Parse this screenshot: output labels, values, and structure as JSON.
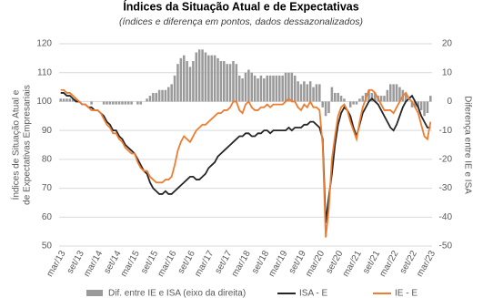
{
  "chart_data": {
    "type": "combo",
    "title": "Índices da Situação Atual e de Expectativas",
    "subtitle": "(índices e diferença em pontos, dados dessazonalizados)",
    "y_label": [
      "Índices de Situação Atual e",
      "de Expectativas Empresariais"
    ],
    "y2_label": "Diferença entre IE e ISA",
    "categories": [
      "mar/13",
      null,
      null,
      null,
      null,
      null,
      "set/13",
      null,
      null,
      null,
      null,
      null,
      "mar/14",
      null,
      null,
      null,
      null,
      null,
      "set/14",
      null,
      null,
      null,
      null,
      null,
      "mar/15",
      null,
      null,
      null,
      null,
      null,
      "set/15",
      null,
      null,
      null,
      null,
      null,
      "mar/16",
      null,
      null,
      null,
      null,
      null,
      "set/16",
      null,
      null,
      null,
      null,
      null,
      "mar/17",
      null,
      null,
      null,
      null,
      null,
      "set/17",
      null,
      null,
      null,
      null,
      null,
      "mar/18",
      null,
      null,
      null,
      null,
      null,
      "set/18",
      null,
      null,
      null,
      null,
      null,
      "mar/19",
      null,
      null,
      null,
      null,
      null,
      "set/19",
      null,
      null,
      null,
      null,
      null,
      "mar/20",
      null,
      null,
      null,
      null,
      null,
      "set/20",
      null,
      null,
      null,
      null,
      null,
      "mar/21",
      null,
      null,
      null,
      null,
      null,
      "set/21",
      null,
      null,
      null,
      null,
      null,
      "mar/22",
      null,
      null,
      null,
      null,
      null,
      "set/22",
      null,
      null,
      null,
      null,
      null,
      "mar/23"
    ],
    "ylim": [
      50,
      120
    ],
    "yticks": [
      50,
      60,
      70,
      80,
      90,
      100,
      110,
      120
    ],
    "y2lim": [
      -50,
      20
    ],
    "y2ticks": [
      -50,
      -40,
      -30,
      -20,
      -10,
      0,
      10,
      20
    ],
    "series": [
      {
        "name": "Dif. entre IE e ISA (eixo da direita)",
        "type": "bar",
        "axis": "y2",
        "color": "#9a9a9a",
        "values": [
          1,
          1,
          1,
          1,
          1,
          1,
          0,
          0,
          0,
          0,
          -1,
          0,
          0,
          0,
          -1,
          -1,
          -1,
          -1,
          -1,
          -1,
          -1,
          -1,
          -1,
          -1,
          0,
          -1,
          -1,
          0,
          1,
          2,
          3,
          3,
          4,
          4,
          4,
          5,
          6,
          9,
          13,
          15,
          16,
          14,
          12,
          14,
          17,
          18,
          18,
          17,
          16,
          16,
          16,
          15,
          14,
          14,
          13,
          13,
          14,
          13,
          9,
          8,
          10,
          11,
          10,
          9,
          8,
          9,
          8,
          9,
          9,
          9,
          9,
          9,
          9,
          10,
          10,
          10,
          9,
          7,
          6,
          7,
          6,
          7,
          5,
          6,
          6,
          -2,
          -5,
          -4,
          5,
          3,
          3,
          2,
          1,
          0,
          -2,
          -1,
          -1,
          1,
          2,
          3,
          4,
          3,
          3,
          2,
          2,
          2,
          4,
          6,
          6,
          6,
          5,
          4,
          3,
          0,
          -2,
          -2,
          -2,
          -3,
          -5,
          -4,
          2
        ]
      },
      {
        "name": "ISA - E",
        "type": "line",
        "color": "#262626",
        "values": [
          103,
          103,
          102,
          102,
          101,
          100,
          100,
          99,
          99,
          98,
          98,
          97,
          97,
          96,
          95,
          93,
          92,
          90,
          90,
          88,
          87,
          85,
          84,
          83,
          82,
          80,
          78,
          76,
          75,
          72,
          70,
          69,
          68,
          68,
          69,
          68,
          68,
          69,
          70,
          71,
          72,
          73,
          74,
          74,
          73,
          73,
          74,
          75,
          77,
          78,
          79,
          81,
          82,
          83,
          84,
          85,
          86,
          87,
          88,
          88,
          89,
          89,
          88,
          88,
          89,
          89,
          90,
          90,
          89,
          90,
          90,
          90,
          90,
          90,
          91,
          90,
          91,
          91,
          91,
          92,
          92,
          93,
          93,
          92,
          91,
          87,
          58,
          67,
          75,
          85,
          92,
          96,
          98,
          97,
          95,
          91,
          88,
          92,
          96,
          98,
          100,
          101,
          100,
          99,
          97,
          95,
          93,
          91,
          90,
          92,
          95,
          98,
          100,
          101,
          102,
          100,
          98,
          95,
          93,
          91,
          91
        ]
      },
      {
        "name": "IE - E",
        "type": "line",
        "color": "#ed7d31",
        "values": [
          104,
          104,
          103,
          103,
          102,
          101,
          100,
          99,
          99,
          98,
          97,
          97,
          97,
          96,
          94,
          92,
          91,
          89,
          89,
          87,
          86,
          84,
          83,
          82,
          82,
          79,
          77,
          76,
          76,
          74,
          73,
          72,
          72,
          72,
          73,
          73,
          74,
          78,
          83,
          86,
          88,
          87,
          86,
          88,
          90,
          91,
          92,
          92,
          93,
          94,
          95,
          96,
          96,
          97,
          97,
          98,
          100,
          100,
          97,
          96,
          99,
          100,
          98,
          97,
          97,
          98,
          98,
          99,
          98,
          99,
          99,
          99,
          99,
          100,
          101,
          100,
          100,
          98,
          97,
          99,
          98,
          100,
          98,
          98,
          97,
          85,
          53,
          63,
          80,
          88,
          95,
          98,
          99,
          97,
          93,
          90,
          87,
          93,
          98,
          101,
          104,
          104,
          103,
          101,
          99,
          97,
          97,
          97,
          96,
          98,
          100,
          102,
          103,
          101,
          100,
          98,
          96,
          92,
          88,
          87,
          93
        ]
      }
    ],
    "grid": true
  }
}
